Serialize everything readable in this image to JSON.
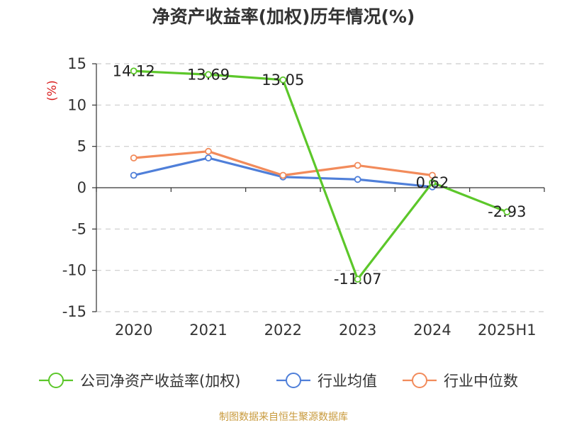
{
  "chart_data": {
    "type": "line",
    "title": "净资产收益率(加权)历年情况(%)",
    "ylabel": "(%)",
    "xlabel": "",
    "categories": [
      "2020",
      "2021",
      "2022",
      "2023",
      "2024",
      "2025H1"
    ],
    "ylim": [
      -15,
      15
    ],
    "yticks": [
      15,
      10,
      5,
      0,
      -5,
      -10,
      -15
    ],
    "grid": true,
    "legend_position": "bottom",
    "series": [
      {
        "name": "公司净资产收益率(加权)",
        "values": [
          14.12,
          13.69,
          13.05,
          -11.07,
          0.62,
          -2.93
        ],
        "color": "#5cc72a",
        "labels": [
          "14.12",
          "13.69",
          "13.05",
          "-11.07",
          "0.62",
          "-2.93"
        ]
      },
      {
        "name": "行业均值",
        "values": [
          1.5,
          3.6,
          1.3,
          1.0,
          0.1,
          null
        ],
        "color": "#4f7fd9"
      },
      {
        "name": "行业中位数",
        "values": [
          3.6,
          4.4,
          1.5,
          2.7,
          1.5,
          null
        ],
        "color": "#f28b5b"
      }
    ]
  },
  "source": "制图数据来自恒生聚源数据库"
}
